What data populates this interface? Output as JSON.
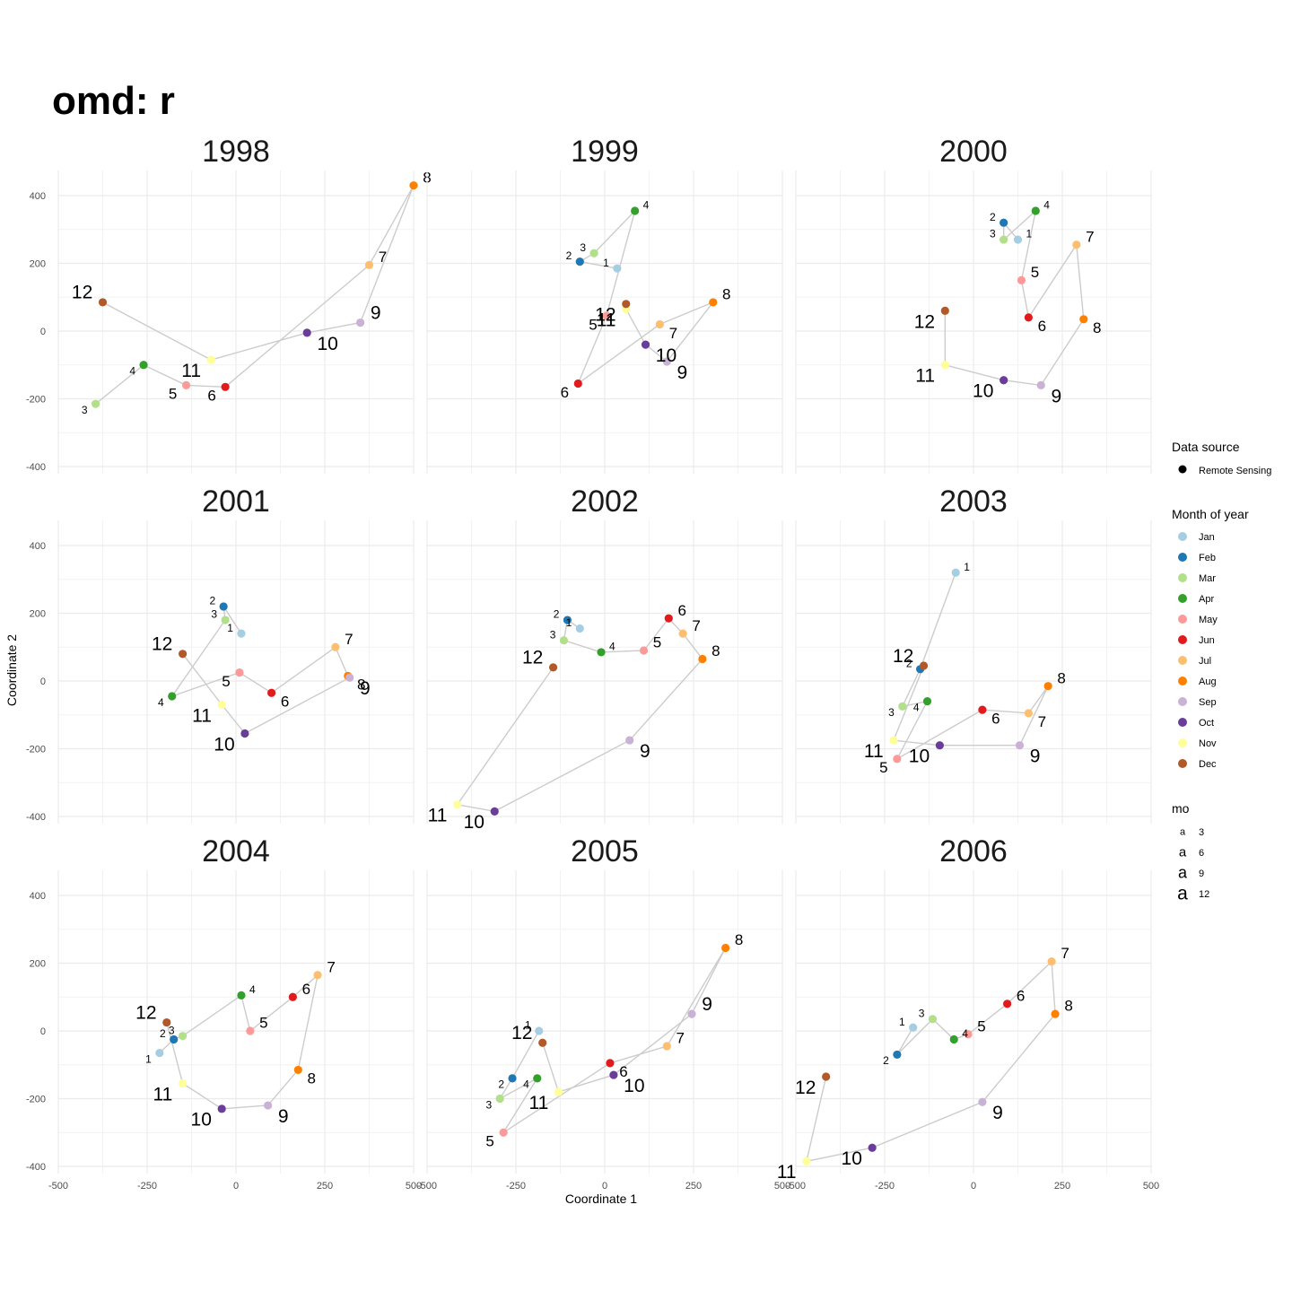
{
  "title": "omd: r",
  "chart_data": {
    "type": "scatter",
    "title": "omd: r",
    "xlabel": "Coordinate 1",
    "ylabel": "Coordinate 2",
    "xlim": [
      -500,
      500
    ],
    "ylim": [
      -400,
      400
    ],
    "xticks": [
      -500,
      -250,
      0,
      250,
      500
    ],
    "yticks": [
      400,
      200,
      0,
      -200,
      -400
    ],
    "tick_labels_x": [
      "-500",
      "-250",
      "0",
      "250",
      "500"
    ],
    "tick_labels_y": [
      "400",
      "200",
      "0",
      "-200",
      "-400"
    ],
    "grid": true,
    "legend_position": "right",
    "month_colors": [
      "#a6cee3",
      "#1f78b4",
      "#b2df8a",
      "#33a02c",
      "#fb9a99",
      "#e31a1c",
      "#fdbf6f",
      "#ff7f00",
      "#cab2d6",
      "#6a3d9a",
      "#ffff99",
      "#b15928"
    ],
    "line_color": "#cccccc",
    "legends": {
      "source": {
        "title": "Data source",
        "items": [
          "Remote Sensing"
        ]
      },
      "month": {
        "title": "Month of year",
        "items": [
          "Jan",
          "Feb",
          "Mar",
          "Apr",
          "May",
          "Jun",
          "Jul",
          "Aug",
          "Sep",
          "Oct",
          "Nov",
          "Dec"
        ]
      },
      "mo": {
        "title": "mo",
        "glyph": "a",
        "items": [
          "3",
          "6",
          "9",
          "12"
        ]
      }
    },
    "panels": [
      {
        "year": "1998",
        "months": [
          3,
          4,
          5,
          6,
          7,
          8,
          9,
          10,
          11,
          12
        ],
        "x": [
          -395,
          -260,
          -140,
          -30,
          375,
          500,
          350,
          200,
          -70,
          -375
        ],
        "y": [
          -215,
          -100,
          -160,
          -165,
          195,
          430,
          25,
          -5,
          -85,
          85
        ]
      },
      {
        "year": "1999",
        "months": [
          1,
          2,
          3,
          4,
          5,
          6,
          7,
          8,
          9,
          10,
          11,
          12
        ],
        "x": [
          35,
          -70,
          -30,
          85,
          5,
          -75,
          155,
          305,
          175,
          115,
          60,
          60
        ],
        "y": [
          185,
          205,
          230,
          355,
          45,
          -155,
          20,
          85,
          -90,
          -40,
          65,
          80
        ]
      },
      {
        "year": "2000",
        "months": [
          1,
          2,
          3,
          4,
          5,
          6,
          7,
          8,
          9,
          10,
          11,
          12
        ],
        "x": [
          125,
          85,
          85,
          175,
          135,
          155,
          290,
          310,
          190,
          85,
          -80,
          -80
        ],
        "y": [
          270,
          320,
          270,
          355,
          150,
          40,
          255,
          35,
          -160,
          -145,
          -100,
          60
        ]
      },
      {
        "year": "2001",
        "months": [
          1,
          2,
          3,
          4,
          5,
          6,
          7,
          8,
          9,
          10,
          11,
          12
        ],
        "x": [
          15,
          -35,
          -30,
          -180,
          10,
          100,
          280,
          315,
          320,
          25,
          -40,
          -150
        ],
        "y": [
          140,
          220,
          180,
          -45,
          25,
          -35,
          100,
          15,
          10,
          -155,
          -70,
          80
        ]
      },
      {
        "year": "2002",
        "months": [
          1,
          2,
          3,
          4,
          5,
          6,
          7,
          8,
          9,
          10,
          11,
          12
        ],
        "x": [
          -70,
          -105,
          -115,
          -10,
          110,
          180,
          220,
          275,
          70,
          -310,
          -415,
          -145
        ],
        "y": [
          155,
          180,
          120,
          85,
          90,
          185,
          140,
          65,
          -175,
          -385,
          -365,
          40
        ]
      },
      {
        "year": "2003",
        "months": [
          1,
          2,
          3,
          4,
          5,
          6,
          7,
          8,
          9,
          10,
          11,
          12
        ],
        "x": [
          -50,
          -150,
          -200,
          -130,
          -215,
          25,
          155,
          210,
          130,
          -95,
          -225,
          -140
        ],
        "y": [
          320,
          35,
          -75,
          -60,
          -230,
          -85,
          -95,
          -15,
          -190,
          -190,
          -175,
          45
        ]
      },
      {
        "year": "2004",
        "months": [
          1,
          2,
          3,
          4,
          5,
          6,
          7,
          8,
          9,
          10,
          11,
          12
        ],
        "x": [
          -215,
          -175,
          -150,
          15,
          40,
          160,
          230,
          175,
          90,
          -40,
          -150,
          -195
        ],
        "y": [
          -65,
          -25,
          -15,
          105,
          0,
          100,
          165,
          -115,
          -220,
          -230,
          -155,
          25
        ]
      },
      {
        "year": "2005",
        "months": [
          1,
          2,
          3,
          4,
          5,
          6,
          7,
          8,
          9,
          10,
          11,
          12
        ],
        "x": [
          -185,
          -260,
          -295,
          -190,
          -285,
          15,
          175,
          340,
          245,
          25,
          -130,
          -175
        ],
        "y": [
          0,
          -140,
          -200,
          -140,
          -300,
          -95,
          -45,
          245,
          50,
          -130,
          -180,
          -35
        ]
      },
      {
        "year": "2006",
        "months": [
          1,
          2,
          3,
          4,
          5,
          6,
          7,
          8,
          9,
          10,
          11,
          12
        ],
        "x": [
          -170,
          -215,
          -115,
          -55,
          -15,
          95,
          220,
          230,
          25,
          -285,
          -470,
          -415
        ],
        "y": [
          10,
          -70,
          35,
          -25,
          -10,
          80,
          205,
          50,
          -210,
          -345,
          -385,
          -135
        ]
      }
    ]
  }
}
